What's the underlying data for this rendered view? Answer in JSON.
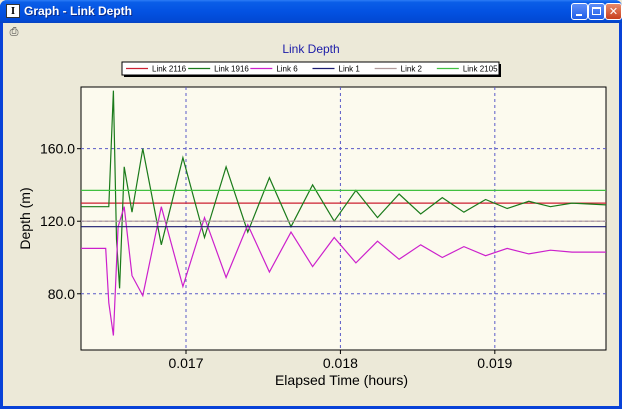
{
  "window": {
    "title": "Graph - Link Depth",
    "app_icon_glyph": "I",
    "print_icon": "printer-icon",
    "buttons": {
      "minimize": "minimize-icon",
      "maximize": "maximize-icon",
      "close": "close-icon",
      "close_glyph": "✕"
    }
  },
  "chart_data": {
    "type": "line",
    "title": "Link Depth",
    "xlabel": "Elapsed Time (hours)",
    "ylabel": "Depth (m)",
    "xlim": [
      0.01632,
      0.01972
    ],
    "ylim": [
      49,
      194
    ],
    "xticks": [
      {
        "value": 0.017,
        "label": "0.017"
      },
      {
        "value": 0.018,
        "label": "0.018"
      },
      {
        "value": 0.019,
        "label": "0.019"
      }
    ],
    "yticks": [
      {
        "value": 80,
        "label": "80.0"
      },
      {
        "value": 120,
        "label": "120.0"
      },
      {
        "value": 160,
        "label": "160.0"
      }
    ],
    "grid": true,
    "legend_placement": "top",
    "background": "#fcfaee",
    "title_color": "#1c1ca8",
    "grid_color": "#5a5ac8",
    "series": [
      {
        "name": "Link 2116",
        "color": "#cc2030",
        "points": [
          [
            0.01632,
            130
          ],
          [
            0.01972,
            130
          ]
        ]
      },
      {
        "name": "Link 1916",
        "color": "#1a7a1a",
        "points": [
          [
            0.01632,
            128
          ],
          [
            0.0165,
            128
          ],
          [
            0.01653,
            192
          ],
          [
            0.01655,
            110
          ],
          [
            0.01657,
            83
          ],
          [
            0.0166,
            150
          ],
          [
            0.01665,
            125
          ],
          [
            0.01672,
            160
          ],
          [
            0.01684,
            107
          ],
          [
            0.01698,
            155
          ],
          [
            0.01712,
            111
          ],
          [
            0.01726,
            150
          ],
          [
            0.0174,
            114
          ],
          [
            0.01754,
            144
          ],
          [
            0.01768,
            117
          ],
          [
            0.01782,
            140
          ],
          [
            0.01796,
            120
          ],
          [
            0.0181,
            137
          ],
          [
            0.01824,
            122
          ],
          [
            0.01838,
            135
          ],
          [
            0.01852,
            124
          ],
          [
            0.01866,
            133
          ],
          [
            0.0188,
            125
          ],
          [
            0.01894,
            132
          ],
          [
            0.01908,
            127
          ],
          [
            0.01922,
            131
          ],
          [
            0.01936,
            128
          ],
          [
            0.0195,
            130
          ],
          [
            0.01972,
            129
          ]
        ]
      },
      {
        "name": "Link 6",
        "color": "#cc20cc",
        "points": [
          [
            0.01632,
            105
          ],
          [
            0.01648,
            105
          ],
          [
            0.0165,
            75
          ],
          [
            0.01653,
            57
          ],
          [
            0.01656,
            117
          ],
          [
            0.0166,
            128
          ],
          [
            0.01665,
            90
          ],
          [
            0.01672,
            79
          ],
          [
            0.01684,
            128
          ],
          [
            0.01698,
            84
          ],
          [
            0.01712,
            122
          ],
          [
            0.01726,
            89
          ],
          [
            0.0174,
            118
          ],
          [
            0.01754,
            92
          ],
          [
            0.01768,
            114
          ],
          [
            0.01782,
            95
          ],
          [
            0.01796,
            111
          ],
          [
            0.0181,
            97
          ],
          [
            0.01824,
            109
          ],
          [
            0.01838,
            99
          ],
          [
            0.01852,
            107
          ],
          [
            0.01866,
            100
          ],
          [
            0.0188,
            106
          ],
          [
            0.01894,
            101
          ],
          [
            0.01908,
            105
          ],
          [
            0.01922,
            102
          ],
          [
            0.01936,
            104
          ],
          [
            0.0195,
            103
          ],
          [
            0.01972,
            103
          ]
        ]
      },
      {
        "name": "Link 1",
        "color": "#1a1a70",
        "points": [
          [
            0.01632,
            117
          ],
          [
            0.01972,
            117
          ]
        ]
      },
      {
        "name": "Link 2",
        "color": "#b09a9a",
        "points": [
          [
            0.01632,
            120
          ],
          [
            0.01972,
            120
          ]
        ]
      },
      {
        "name": "Link 2105",
        "color": "#40c040",
        "points": [
          [
            0.01632,
            137
          ],
          [
            0.01972,
            137
          ]
        ]
      }
    ]
  }
}
